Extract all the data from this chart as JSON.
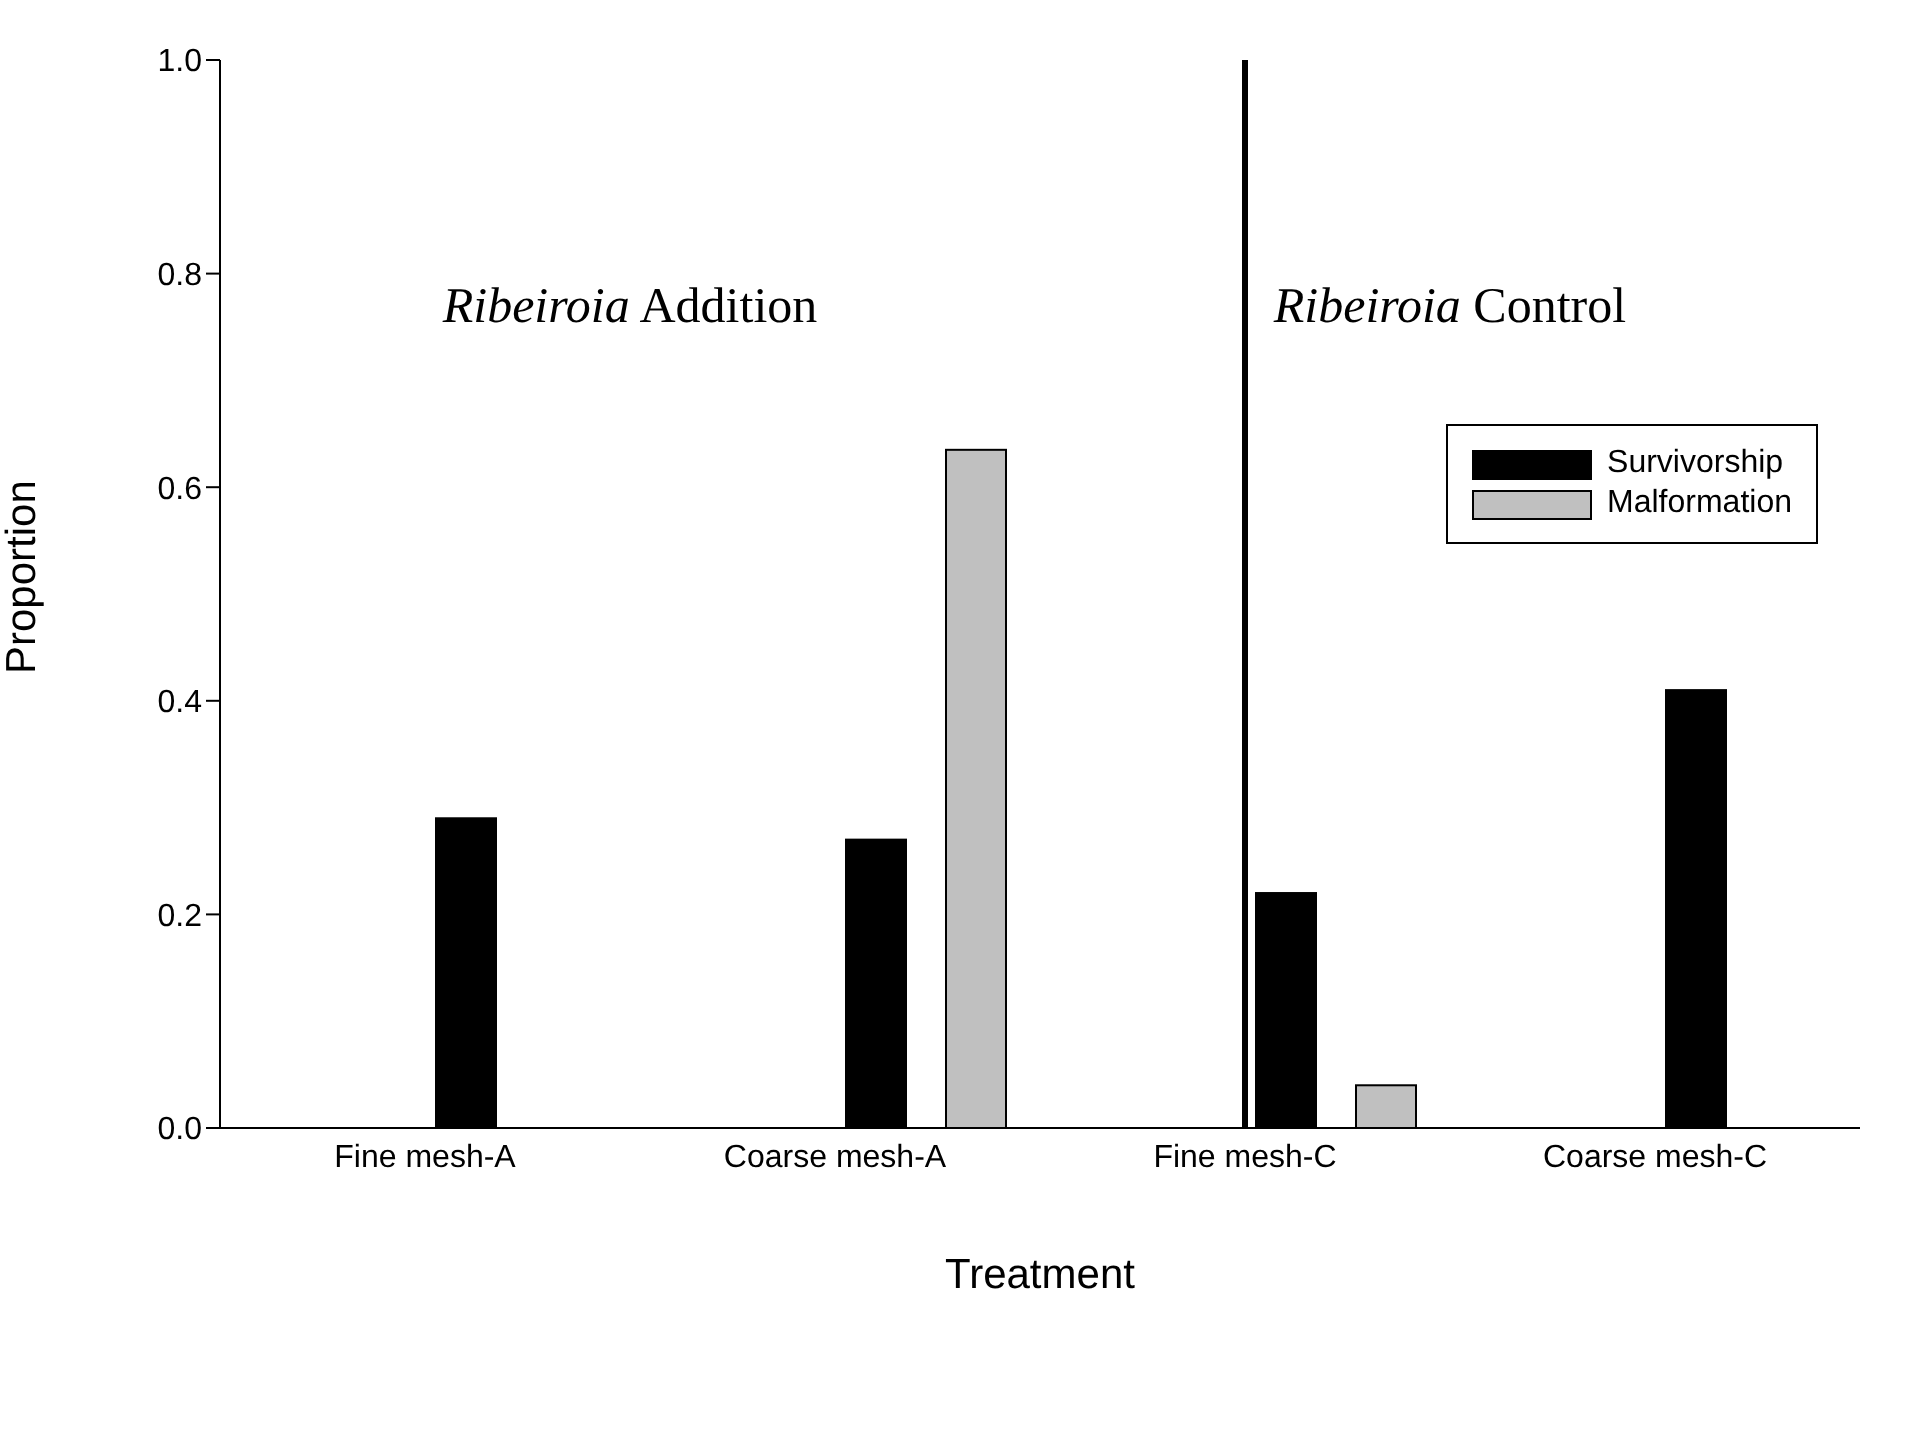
{
  "chart_data": {
    "type": "bar",
    "xlabel": "Treatment",
    "ylabel": "Proportion",
    "categories": [
      "Fine mesh-A",
      "Coarse mesh-A",
      "Fine mesh-C",
      "Coarse mesh-C"
    ],
    "series": [
      {
        "name": "Survivorship",
        "color": "#000000",
        "values": [
          0.29,
          0.27,
          0.22,
          0.41
        ]
      },
      {
        "name": "Malformation",
        "color": "#c0c0c0",
        "values": [
          0,
          0.635,
          0.04,
          0
        ]
      }
    ],
    "ylim": [
      0,
      1
    ],
    "yticks": [
      {
        "value": 0,
        "label": "0.0"
      },
      0.2,
      0.4,
      0.6,
      0.8,
      {
        "value": 1,
        "label": "1.0"
      }
    ],
    "ref_lines": [
      {
        "axis": "x",
        "value": "Fine mesh-C",
        "color": "#000000"
      }
    ],
    "annotations": [
      "Ribeiroia Addition",
      "Ribeiroia Control"
    ],
    "grid": false,
    "legend": "top right"
  }
}
